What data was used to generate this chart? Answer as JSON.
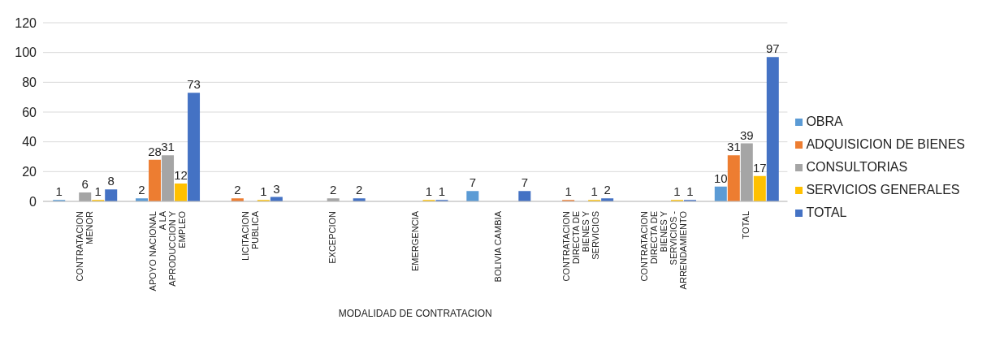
{
  "chart_data": {
    "type": "bar",
    "xlabel": "MODALIDAD DE CONTRATACION",
    "categories": [
      "CONTRATACION MENOR",
      "APOYO NACIONAL A LA APRODUCCION Y EMPLEO",
      "LICITACION PUBLICA",
      "EXCEPCION",
      "EMERGENCIA",
      "BOLIVIA CAMBIA",
      "CONTRATACION DIRECTA DE BIENES Y SERVICIOS",
      "CONTRATACION DIRECTA DE BIENES Y SERVICIOS - ARRENDAMIENTO",
      "TOTAL"
    ],
    "series": [
      {
        "name": "OBRA",
        "color": "#5b9bd5",
        "values": [
          1,
          2,
          null,
          null,
          null,
          7,
          null,
          null,
          10
        ]
      },
      {
        "name": "ADQUISICION DE BIENES",
        "color": "#ed7d31",
        "values": [
          null,
          28,
          2,
          null,
          null,
          null,
          1,
          null,
          31
        ]
      },
      {
        "name": "CONSULTORIAS",
        "color": "#a5a5a5",
        "values": [
          6,
          31,
          null,
          2,
          null,
          null,
          null,
          null,
          39
        ]
      },
      {
        "name": "SERVICIOS GENERALES",
        "color": "#ffc000",
        "values": [
          1,
          12,
          1,
          null,
          1,
          null,
          1,
          1,
          17
        ]
      },
      {
        "name": "TOTAL",
        "color": "#4472c4",
        "values": [
          8,
          73,
          3,
          2,
          1,
          7,
          2,
          1,
          97
        ]
      }
    ],
    "ylim": [
      0,
      120
    ],
    "yticks": [
      0,
      20,
      40,
      60,
      80,
      100,
      120
    ],
    "grid": "y",
    "legend": "right",
    "data_labels": true
  }
}
